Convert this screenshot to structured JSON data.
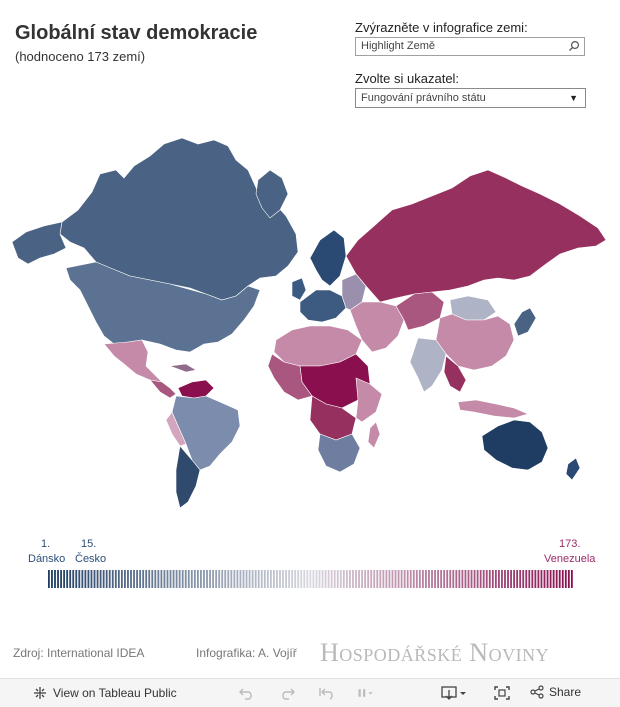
{
  "header": {
    "title": "Globální stav demokracie",
    "subtitle": "(hodnoceno 173 zemí)"
  },
  "controls": {
    "highlight_label": "Zvýrazněte v infografice zemi:",
    "highlight_placeholder": "Highlight Země",
    "indicator_label": "Zvolte si ukazatel:",
    "indicator_value": "Fungování právního státu"
  },
  "legend": {
    "first_rank": "1.",
    "first_country": "Dánsko",
    "cz_rank": "15.",
    "cz_country": "Česko",
    "last_rank": "173.",
    "last_country": "Venezuela",
    "color_best": "#1f3d63",
    "color_mid": "#d9d9e0",
    "color_worst": "#8a0f4f"
  },
  "footer": {
    "source": "Zdroj: International IDEA",
    "author": "Infografika: A. Vojíř",
    "logo": "Hospodářské Noviny"
  },
  "toolbar": {
    "view_label": "View on Tableau Public",
    "share_label": "Share",
    "icons": [
      "tableau-icon",
      "undo-icon",
      "redo-icon",
      "revert-icon",
      "pause-icon",
      "download-icon",
      "fullscreen-icon",
      "share-icon"
    ]
  }
}
